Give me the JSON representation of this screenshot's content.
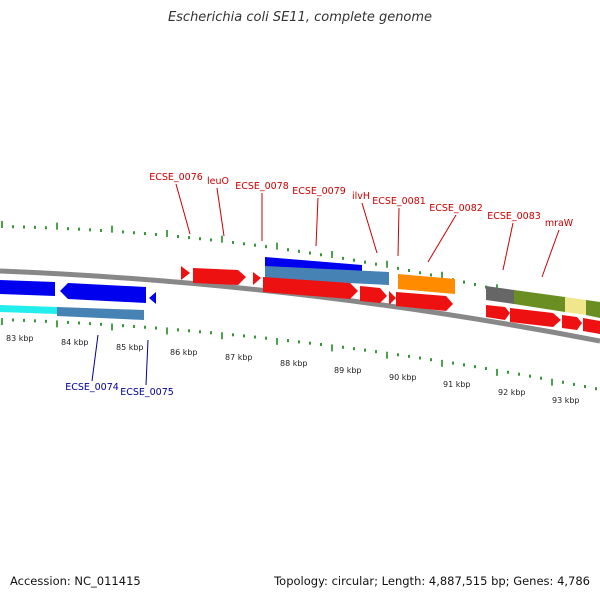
{
  "title": "Escherichia coli SE11, complete genome",
  "footer": {
    "accession": "Accession: NC_011415",
    "summary": "Topology: circular; Length: 4,887,515 bp; Genes: 4,786"
  },
  "colors": {
    "backbone": "#888888",
    "tick": "#228b22",
    "top_label": "#cc0000",
    "bottom_label": "#000099",
    "red_gene": "#ee1111",
    "blue_gene": "#0000ee",
    "steel_blue": "#4682b4",
    "cyan": "#22eeee",
    "orange": "#ff8c00",
    "gray": "#666666",
    "olive": "#6b8e23",
    "khaki": "#f0e68c"
  },
  "kbp_labels": [
    "83 kbp",
    "84 kbp",
    "85 kbp",
    "86 kbp",
    "87 kbp",
    "88 kbp",
    "89 kbp",
    "90 kbp",
    "91 kbp",
    "92 kbp",
    "93 kbp"
  ],
  "top_gene_labels": [
    "ECSE_0076",
    "leuO",
    "ECSE_0078",
    "ECSE_0079",
    "ilvH",
    "ECSE_0081",
    "ECSE_0082",
    "ECSE_0083",
    "mraW"
  ],
  "bottom_gene_labels": [
    "ECSE_0074",
    "ECSE_0075"
  ]
}
